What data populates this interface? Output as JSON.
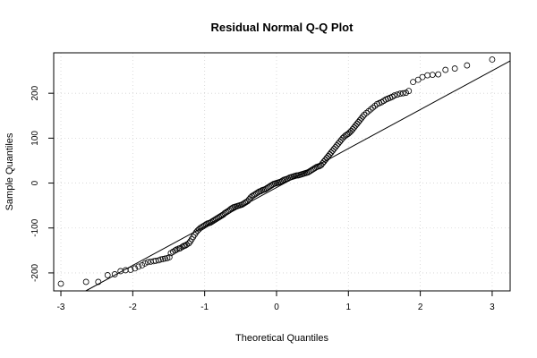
{
  "chart_data": {
    "type": "scatter",
    "title": "Residual Normal Q-Q Plot",
    "xlabel": "Theoretical Quantiles",
    "ylabel": "Sample Quantiles",
    "xlim": [
      -3.1,
      3.25
    ],
    "ylim": [
      -240,
      290
    ],
    "xticks": [
      -3,
      -2,
      -1,
      0,
      1,
      2,
      3
    ],
    "yticks": [
      -200,
      -100,
      0,
      100,
      200
    ],
    "grid": true,
    "reference_line": {
      "x1": -3,
      "y1": -270,
      "x2": 3.4,
      "y2": 285
    },
    "series": [
      {
        "points": [
          [
            -3.0,
            -224
          ],
          [
            -2.65,
            -220
          ],
          [
            -2.48,
            -220
          ],
          [
            -2.35,
            -205
          ],
          [
            -2.25,
            -203
          ],
          [
            -2.17,
            -196
          ],
          [
            -2.1,
            -194
          ],
          [
            -2.03,
            -193
          ],
          [
            -1.97,
            -190
          ],
          [
            -1.92,
            -186
          ],
          [
            -1.87,
            -183
          ],
          [
            -1.83,
            -179
          ],
          [
            -1.79,
            -176
          ],
          [
            -1.75,
            -175
          ],
          [
            -1.71,
            -174
          ],
          [
            -1.68,
            -173
          ],
          [
            -1.64,
            -172
          ],
          [
            -1.61,
            -170
          ],
          [
            -1.58,
            -169
          ],
          [
            -1.55,
            -168
          ],
          [
            -1.52,
            -167
          ],
          [
            -1.49,
            -165
          ],
          [
            -1.47,
            -156
          ],
          [
            -1.44,
            -153
          ],
          [
            -1.41,
            -150
          ],
          [
            -1.39,
            -148
          ],
          [
            -1.36,
            -146
          ],
          [
            -1.34,
            -145
          ],
          [
            -1.31,
            -142
          ],
          [
            -1.29,
            -140
          ],
          [
            -1.27,
            -139
          ],
          [
            -1.25,
            -137
          ],
          [
            -1.22,
            -134
          ],
          [
            -1.2,
            -130
          ],
          [
            -1.18,
            -125
          ],
          [
            -1.16,
            -120
          ],
          [
            -1.14,
            -115
          ],
          [
            -1.12,
            -110
          ],
          [
            -1.1,
            -106
          ],
          [
            -1.08,
            -103
          ],
          [
            -1.06,
            -100
          ],
          [
            -1.04,
            -98
          ],
          [
            -1.02,
            -96
          ],
          [
            -1.0,
            -94
          ],
          [
            -0.98,
            -92
          ],
          [
            -0.96,
            -90
          ],
          [
            -0.94,
            -89
          ],
          [
            -0.92,
            -88
          ],
          [
            -0.9,
            -86
          ],
          [
            -0.88,
            -84
          ],
          [
            -0.86,
            -82
          ],
          [
            -0.84,
            -80
          ],
          [
            -0.82,
            -78
          ],
          [
            -0.8,
            -76
          ],
          [
            -0.78,
            -74
          ],
          [
            -0.76,
            -72
          ],
          [
            -0.74,
            -70
          ],
          [
            -0.72,
            -67
          ],
          [
            -0.7,
            -65
          ],
          [
            -0.68,
            -63
          ],
          [
            -0.66,
            -61
          ],
          [
            -0.64,
            -58
          ],
          [
            -0.62,
            -56
          ],
          [
            -0.6,
            -54
          ],
          [
            -0.58,
            -53
          ],
          [
            -0.56,
            -52
          ],
          [
            -0.54,
            -51
          ],
          [
            -0.52,
            -50
          ],
          [
            -0.5,
            -49
          ],
          [
            -0.48,
            -48
          ],
          [
            -0.46,
            -46
          ],
          [
            -0.44,
            -44
          ],
          [
            -0.42,
            -42
          ],
          [
            -0.4,
            -40
          ],
          [
            -0.38,
            -36
          ],
          [
            -0.36,
            -32
          ],
          [
            -0.34,
            -29
          ],
          [
            -0.32,
            -27
          ],
          [
            -0.3,
            -25
          ],
          [
            -0.28,
            -23
          ],
          [
            -0.26,
            -21
          ],
          [
            -0.24,
            -19
          ],
          [
            -0.22,
            -18
          ],
          [
            -0.2,
            -16
          ],
          [
            -0.18,
            -15
          ],
          [
            -0.16,
            -14
          ],
          [
            -0.14,
            -12
          ],
          [
            -0.12,
            -10
          ],
          [
            -0.1,
            -8
          ],
          [
            -0.08,
            -6
          ],
          [
            -0.06,
            -4
          ],
          [
            -0.04,
            -2
          ],
          [
            -0.02,
            -1
          ],
          [
            0.0,
            0
          ],
          [
            0.02,
            1
          ],
          [
            0.04,
            2
          ],
          [
            0.06,
            3
          ],
          [
            0.08,
            5
          ],
          [
            0.1,
            7
          ],
          [
            0.12,
            8
          ],
          [
            0.14,
            9
          ],
          [
            0.16,
            10
          ],
          [
            0.18,
            12
          ],
          [
            0.2,
            13
          ],
          [
            0.22,
            14
          ],
          [
            0.24,
            15
          ],
          [
            0.26,
            16
          ],
          [
            0.28,
            17
          ],
          [
            0.3,
            17
          ],
          [
            0.32,
            18
          ],
          [
            0.34,
            19
          ],
          [
            0.36,
            20
          ],
          [
            0.38,
            21
          ],
          [
            0.4,
            22
          ],
          [
            0.42,
            23
          ],
          [
            0.44,
            24
          ],
          [
            0.46,
            26
          ],
          [
            0.48,
            28
          ],
          [
            0.5,
            30
          ],
          [
            0.52,
            32
          ],
          [
            0.54,
            34
          ],
          [
            0.56,
            36
          ],
          [
            0.58,
            37
          ],
          [
            0.6,
            38
          ],
          [
            0.62,
            40
          ],
          [
            0.64,
            44
          ],
          [
            0.66,
            48
          ],
          [
            0.68,
            52
          ],
          [
            0.7,
            56
          ],
          [
            0.72,
            60
          ],
          [
            0.74,
            64
          ],
          [
            0.76,
            68
          ],
          [
            0.78,
            72
          ],
          [
            0.8,
            76
          ],
          [
            0.82,
            80
          ],
          [
            0.84,
            84
          ],
          [
            0.86,
            88
          ],
          [
            0.88,
            92
          ],
          [
            0.9,
            96
          ],
          [
            0.92,
            100
          ],
          [
            0.94,
            103
          ],
          [
            0.96,
            106
          ],
          [
            0.98,
            108
          ],
          [
            1.0,
            110
          ],
          [
            1.02,
            113
          ],
          [
            1.04,
            116
          ],
          [
            1.06,
            120
          ],
          [
            1.08,
            124
          ],
          [
            1.1,
            128
          ],
          [
            1.12,
            132
          ],
          [
            1.14,
            136
          ],
          [
            1.16,
            140
          ],
          [
            1.18,
            144
          ],
          [
            1.2,
            148
          ],
          [
            1.22,
            152
          ],
          [
            1.25,
            156
          ],
          [
            1.28,
            160
          ],
          [
            1.31,
            164
          ],
          [
            1.34,
            168
          ],
          [
            1.37,
            172
          ],
          [
            1.4,
            176
          ],
          [
            1.43,
            178
          ],
          [
            1.46,
            180
          ],
          [
            1.49,
            183
          ],
          [
            1.52,
            186
          ],
          [
            1.55,
            188
          ],
          [
            1.58,
            190
          ],
          [
            1.61,
            192
          ],
          [
            1.64,
            195
          ],
          [
            1.68,
            197
          ],
          [
            1.72,
            199
          ],
          [
            1.76,
            200
          ],
          [
            1.8,
            201
          ],
          [
            1.84,
            205
          ],
          [
            1.9,
            225
          ],
          [
            1.97,
            230
          ],
          [
            2.03,
            236
          ],
          [
            2.1,
            240
          ],
          [
            2.17,
            241
          ],
          [
            2.25,
            242
          ],
          [
            2.35,
            252
          ],
          [
            2.48,
            255
          ],
          [
            2.65,
            262
          ],
          [
            3.0,
            275
          ]
        ]
      }
    ]
  }
}
